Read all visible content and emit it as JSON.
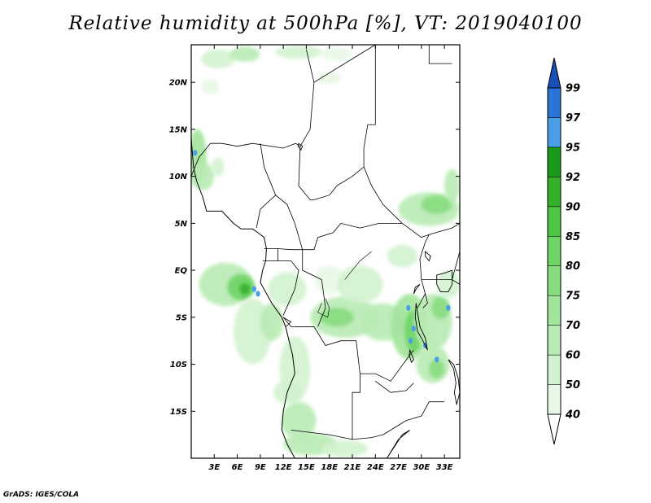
{
  "title": "Relative humidity at 500hPa [%], VT: 2019040100",
  "credit": "GrADS: IGES/COLA",
  "map": {
    "lon_range": [
      0,
      35
    ],
    "lat_range": [
      -20,
      24
    ],
    "lat_ticks": [
      {
        "v": 20,
        "t": "20N"
      },
      {
        "v": 15,
        "t": "15N"
      },
      {
        "v": 10,
        "t": "10N"
      },
      {
        "v": 5,
        "t": "5N"
      },
      {
        "v": 0,
        "t": "EQ"
      },
      {
        "v": -5,
        "t": "5S"
      },
      {
        "v": -10,
        "t": "10S"
      },
      {
        "v": -15,
        "t": "15S"
      }
    ],
    "lon_ticks": [
      {
        "v": 3,
        "t": "3E"
      },
      {
        "v": 6,
        "t": "6E"
      },
      {
        "v": 9,
        "t": "9E"
      },
      {
        "v": 12,
        "t": "12E"
      },
      {
        "v": 15,
        "t": "15E"
      },
      {
        "v": 18,
        "t": "18E"
      },
      {
        "v": 21,
        "t": "21E"
      },
      {
        "v": 24,
        "t": "24E"
      },
      {
        "v": 27,
        "t": "27E"
      },
      {
        "v": 30,
        "t": "30E"
      },
      {
        "v": 33,
        "t": "33E"
      }
    ]
  },
  "colorbar": {
    "levels": [
      "40",
      "50",
      "60",
      "70",
      "75",
      "80",
      "85",
      "90",
      "92",
      "95",
      "97",
      "99"
    ],
    "colors": [
      "#ffffff",
      "#e8f8e6",
      "#d2f2cf",
      "#b9ebb4",
      "#a2e49b",
      "#88dc80",
      "#6ed466",
      "#4fc545",
      "#34b02b",
      "#179a17",
      "#4a9ee8",
      "#2a74d8",
      "#1a4fb8"
    ]
  },
  "humidity_blobs": [
    {
      "lon": 3.5,
      "lat": 22.5,
      "rx": 2.2,
      "ry": 1.0,
      "level": 2
    },
    {
      "lon": 7.0,
      "lat": 23.0,
      "rx": 2.0,
      "ry": 0.8,
      "level": 3
    },
    {
      "lon": 14.0,
      "lat": 23.2,
      "rx": 3.0,
      "ry": 0.7,
      "level": 2
    },
    {
      "lon": 19.0,
      "lat": 23.0,
      "rx": 2.0,
      "ry": 0.7,
      "level": 1
    },
    {
      "lon": 2.5,
      "lat": 19.5,
      "rx": 1.2,
      "ry": 0.8,
      "level": 1
    },
    {
      "lon": 18.0,
      "lat": 20.5,
      "rx": 1.5,
      "ry": 0.7,
      "level": 1
    },
    {
      "lon": 0.8,
      "lat": 12.0,
      "rx": 1.2,
      "ry": 3.0,
      "level": 4
    },
    {
      "lon": 1.5,
      "lat": 10.0,
      "rx": 1.5,
      "ry": 1.5,
      "level": 3
    },
    {
      "lon": 3.5,
      "lat": 11.0,
      "rx": 0.8,
      "ry": 1.0,
      "level": 2
    },
    {
      "lon": 31.0,
      "lat": 6.5,
      "rx": 4.0,
      "ry": 1.8,
      "level": 3
    },
    {
      "lon": 32.0,
      "lat": 7.0,
      "rx": 2.0,
      "ry": 1.0,
      "level": 5
    },
    {
      "lon": 34.0,
      "lat": 9.0,
      "rx": 1.0,
      "ry": 1.8,
      "level": 3
    },
    {
      "lon": 4.5,
      "lat": -1.5,
      "rx": 3.5,
      "ry": 2.3,
      "level": 3
    },
    {
      "lon": 6.5,
      "lat": -1.8,
      "rx": 1.8,
      "ry": 1.4,
      "level": 6
    },
    {
      "lon": 7.0,
      "lat": -2.0,
      "rx": 0.7,
      "ry": 0.6,
      "level": 8
    },
    {
      "lon": 8.0,
      "lat": -6.5,
      "rx": 2.5,
      "ry": 3.5,
      "level": 2
    },
    {
      "lon": 10.5,
      "lat": -5.5,
      "rx": 1.5,
      "ry": 2.0,
      "level": 3
    },
    {
      "lon": 13.5,
      "lat": -10.5,
      "rx": 2.0,
      "ry": 3.5,
      "level": 2
    },
    {
      "lon": 12.5,
      "lat": -13.0,
      "rx": 1.8,
      "ry": 1.2,
      "level": 2
    },
    {
      "lon": 14.0,
      "lat": -16.0,
      "rx": 2.3,
      "ry": 2.0,
      "level": 3
    },
    {
      "lon": 15.5,
      "lat": -18.5,
      "rx": 3.5,
      "ry": 1.2,
      "level": 3
    },
    {
      "lon": 20.0,
      "lat": -19.0,
      "rx": 3.0,
      "ry": 0.9,
      "level": 2
    },
    {
      "lon": 12.5,
      "lat": -2.0,
      "rx": 2.5,
      "ry": 1.8,
      "level": 2
    },
    {
      "lon": 18.0,
      "lat": -1.0,
      "rx": 2.0,
      "ry": 1.5,
      "level": 1
    },
    {
      "lon": 20.0,
      "lat": -5.0,
      "rx": 4.5,
      "ry": 2.2,
      "level": 3
    },
    {
      "lon": 19.0,
      "lat": -5.0,
      "rx": 2.2,
      "ry": 1.0,
      "level": 5
    },
    {
      "lon": 22.0,
      "lat": -1.5,
      "rx": 3.0,
      "ry": 2.0,
      "level": 2
    },
    {
      "lon": 25.0,
      "lat": -5.5,
      "rx": 3.0,
      "ry": 2.0,
      "level": 3
    },
    {
      "lon": 27.5,
      "lat": 1.5,
      "rx": 2.0,
      "ry": 1.2,
      "level": 2
    },
    {
      "lon": 28.5,
      "lat": -6.0,
      "rx": 2.5,
      "ry": 3.5,
      "level": 4
    },
    {
      "lon": 29.0,
      "lat": -6.5,
      "rx": 1.2,
      "ry": 2.2,
      "level": 6
    },
    {
      "lon": 31.5,
      "lat": -5.5,
      "rx": 2.5,
      "ry": 3.0,
      "level": 3
    },
    {
      "lon": 32.5,
      "lat": -4.0,
      "rx": 1.2,
      "ry": 1.2,
      "level": 5
    },
    {
      "lon": 31.5,
      "lat": -10.0,
      "rx": 2.2,
      "ry": 2.0,
      "level": 3
    },
    {
      "lon": 32.0,
      "lat": -10.5,
      "rx": 1.0,
      "ry": 1.0,
      "level": 5
    },
    {
      "lon": 33.5,
      "lat": -1.5,
      "rx": 1.5,
      "ry": 1.5,
      "level": 2
    }
  ],
  "blue_spots": [
    {
      "lon": 0.5,
      "lat": 12.5
    },
    {
      "lon": 8.2,
      "lat": -2.0
    },
    {
      "lon": 8.7,
      "lat": -2.5
    },
    {
      "lon": 28.3,
      "lat": -4.0
    },
    {
      "lon": 29.0,
      "lat": -6.2
    },
    {
      "lon": 28.6,
      "lat": -7.5
    },
    {
      "lon": 30.5,
      "lat": -8.0
    },
    {
      "lon": 33.5,
      "lat": -4.0
    },
    {
      "lon": 32.0,
      "lat": -9.5
    }
  ],
  "borders": [
    [
      [
        0,
        10
      ],
      [
        1,
        12
      ],
      [
        2.5,
        13.5
      ],
      [
        4,
        13.5
      ],
      [
        6,
        13.2
      ],
      [
        8,
        13.5
      ],
      [
        12,
        13
      ],
      [
        13.6,
        13.5
      ],
      [
        14.2,
        13.2
      ]
    ],
    [
      [
        14.2,
        13.2
      ],
      [
        14,
        9
      ],
      [
        15.5,
        7.5
      ],
      [
        16,
        7.5
      ],
      [
        18,
        8
      ],
      [
        19,
        9
      ],
      [
        21,
        10
      ],
      [
        22.5,
        11
      ],
      [
        23.5,
        9
      ],
      [
        25,
        7
      ],
      [
        27.5,
        5
      ],
      [
        30,
        3.5
      ],
      [
        31,
        3.8
      ]
    ],
    [
      [
        14.2,
        13.2
      ],
      [
        15.5,
        15
      ],
      [
        16,
        20
      ],
      [
        15,
        23.5
      ]
    ],
    [
      [
        16,
        20
      ],
      [
        22,
        23
      ],
      [
        24,
        24
      ]
    ],
    [
      [
        24,
        24
      ],
      [
        24,
        20
      ],
      [
        24,
        15.5
      ],
      [
        23,
        15.5
      ],
      [
        22.5,
        13
      ],
      [
        22.5,
        11
      ]
    ],
    [
      [
        9,
        13.5
      ],
      [
        9.5,
        11
      ],
      [
        11,
        8
      ],
      [
        12.5,
        7
      ],
      [
        13.5,
        5
      ],
      [
        14.5,
        2.2
      ]
    ],
    [
      [
        8.5,
        4.5
      ],
      [
        9,
        6.5
      ],
      [
        11,
        8
      ]
    ],
    [
      [
        9.5,
        2.3
      ],
      [
        11.3,
        2.3
      ],
      [
        13,
        2.2
      ],
      [
        14.5,
        2.2
      ],
      [
        16,
        2.2
      ],
      [
        16.5,
        3.5
      ],
      [
        18.5,
        4
      ],
      [
        19.5,
        5
      ],
      [
        22,
        4.5
      ],
      [
        24.5,
        5
      ],
      [
        27.5,
        5
      ]
    ],
    [
      [
        11.3,
        2.3
      ],
      [
        11.3,
        1
      ],
      [
        9.3,
        1
      ]
    ],
    [
      [
        11.3,
        1
      ],
      [
        13,
        1
      ],
      [
        14,
        0
      ],
      [
        13.5,
        -2
      ],
      [
        12,
        -4.8
      ]
    ],
    [
      [
        14.5,
        2.2
      ],
      [
        14.5,
        0
      ],
      [
        17,
        -1
      ],
      [
        17.5,
        -4
      ],
      [
        16.5,
        -6
      ]
    ],
    [
      [
        12,
        -5
      ],
      [
        13,
        -6
      ],
      [
        16,
        -6
      ],
      [
        17.5,
        -8
      ],
      [
        19.5,
        -7.5
      ],
      [
        21.5,
        -7.5
      ],
      [
        22,
        -11
      ],
      [
        24,
        -11
      ],
      [
        26,
        -11.8
      ],
      [
        28.5,
        -9
      ],
      [
        29,
        -8.5
      ]
    ],
    [
      [
        12,
        -5
      ],
      [
        13,
        -5.5
      ],
      [
        12.3,
        -6
      ]
    ],
    [
      [
        13,
        -17
      ],
      [
        18,
        -17.5
      ],
      [
        21,
        -18
      ],
      [
        23.5,
        -17.8
      ],
      [
        25,
        -17.5
      ]
    ],
    [
      [
        21,
        -18
      ],
      [
        21,
        -13
      ],
      [
        22,
        -13
      ],
      [
        22,
        -11
      ]
    ],
    [
      [
        25,
        -17.5
      ],
      [
        28,
        -16
      ],
      [
        30,
        -15.5
      ],
      [
        31,
        -14
      ],
      [
        33,
        -14
      ]
    ],
    [
      [
        24,
        -11.8
      ],
      [
        26,
        -13
      ],
      [
        28,
        -12.8
      ],
      [
        29,
        -12
      ]
    ],
    [
      [
        29.5,
        -4
      ],
      [
        30.5,
        -2.5
      ],
      [
        30,
        -1
      ],
      [
        29.8,
        1.2
      ],
      [
        30.5,
        3
      ],
      [
        31,
        3.8
      ]
    ],
    [
      [
        31,
        3.8
      ],
      [
        34,
        4.5
      ],
      [
        35,
        5
      ]
    ],
    [
      [
        30,
        -1
      ],
      [
        34,
        -1
      ],
      [
        35,
        -1.5
      ]
    ],
    [
      [
        34,
        -1
      ],
      [
        35,
        2
      ]
    ],
    [
      [
        30.5,
        -2.5
      ],
      [
        30.8,
        -3.5
      ],
      [
        30.2,
        -4
      ]
    ],
    [
      [
        34,
        22
      ],
      [
        31,
        22
      ],
      [
        31,
        24
      ]
    ],
    [
      [
        13.5,
        -6
      ],
      [
        16,
        -6
      ]
    ]
  ],
  "coastlines": [
    [
      [
        0,
        14
      ],
      [
        0.3,
        11
      ],
      [
        0.7,
        9.5
      ],
      [
        1.5,
        7.8
      ],
      [
        2,
        6.3
      ],
      [
        4,
        6.3
      ],
      [
        5.5,
        5
      ],
      [
        6.5,
        4.4
      ],
      [
        8,
        4.4
      ],
      [
        8.7,
        4
      ],
      [
        9.5,
        3.5
      ],
      [
        9.8,
        2.3
      ],
      [
        9.7,
        1
      ],
      [
        9.3,
        0
      ],
      [
        9,
        -1.3
      ],
      [
        10.5,
        -3.5
      ],
      [
        11.8,
        -5
      ],
      [
        12.3,
        -6
      ],
      [
        12.9,
        -8
      ],
      [
        13.2,
        -9
      ],
      [
        13.5,
        -11
      ],
      [
        12.5,
        -13
      ],
      [
        12,
        -15
      ],
      [
        11.8,
        -17
      ],
      [
        12.5,
        -18.5
      ],
      [
        13.5,
        -20
      ]
    ]
  ],
  "lakes": [
    [
      [
        29.3,
        -3.5
      ],
      [
        29.2,
        -5
      ],
      [
        29.5,
        -6.5
      ],
      [
        30.2,
        -7.5
      ],
      [
        30.8,
        -8.5
      ],
      [
        30.5,
        -7.2
      ],
      [
        29.8,
        -6
      ],
      [
        29.5,
        -4.5
      ]
    ],
    [
      [
        33.5,
        -9.5
      ],
      [
        34.2,
        -10.5
      ],
      [
        34.5,
        -12
      ],
      [
        34.3,
        -13
      ],
      [
        34.6,
        -14.3
      ],
      [
        35,
        -13
      ],
      [
        34.8,
        -11.5
      ],
      [
        34.2,
        -10
      ]
    ],
    [
      [
        32,
        -0.5
      ],
      [
        33,
        -0.3
      ],
      [
        34,
        0
      ],
      [
        34,
        -1.5
      ],
      [
        33.5,
        -2.3
      ],
      [
        32.5,
        -2.3
      ],
      [
        32,
        -1.5
      ]
    ],
    [
      [
        29.8,
        -1.5
      ],
      [
        29.3,
        -2
      ],
      [
        29,
        -2.5
      ],
      [
        29.2,
        -1.8
      ]
    ],
    [
      [
        30.5,
        2
      ],
      [
        31.2,
        1.5
      ],
      [
        31,
        1
      ],
      [
        30.5,
        1.5
      ]
    ],
    [
      [
        28.5,
        -8.5
      ],
      [
        29,
        -9.5
      ],
      [
        28.7,
        -9.8
      ],
      [
        28.4,
        -9
      ]
    ],
    [
      [
        14,
        13.5
      ],
      [
        14.5,
        13.2
      ],
      [
        14.3,
        12.8
      ],
      [
        13.9,
        13.2
      ]
    ],
    [
      [
        25.5,
        -20
      ],
      [
        27,
        -18
      ],
      [
        28.5,
        -17
      ],
      [
        27.5,
        -17.5
      ]
    ]
  ],
  "rivers": [
    [
      [
        17.5,
        -3
      ],
      [
        18,
        -4
      ],
      [
        17.8,
        -5
      ],
      [
        16.5,
        -4.5
      ],
      [
        17,
        -3.5
      ]
    ],
    [
      [
        20,
        -1
      ],
      [
        21,
        0
      ],
      [
        22,
        1
      ],
      [
        23.5,
        2
      ]
    ]
  ]
}
